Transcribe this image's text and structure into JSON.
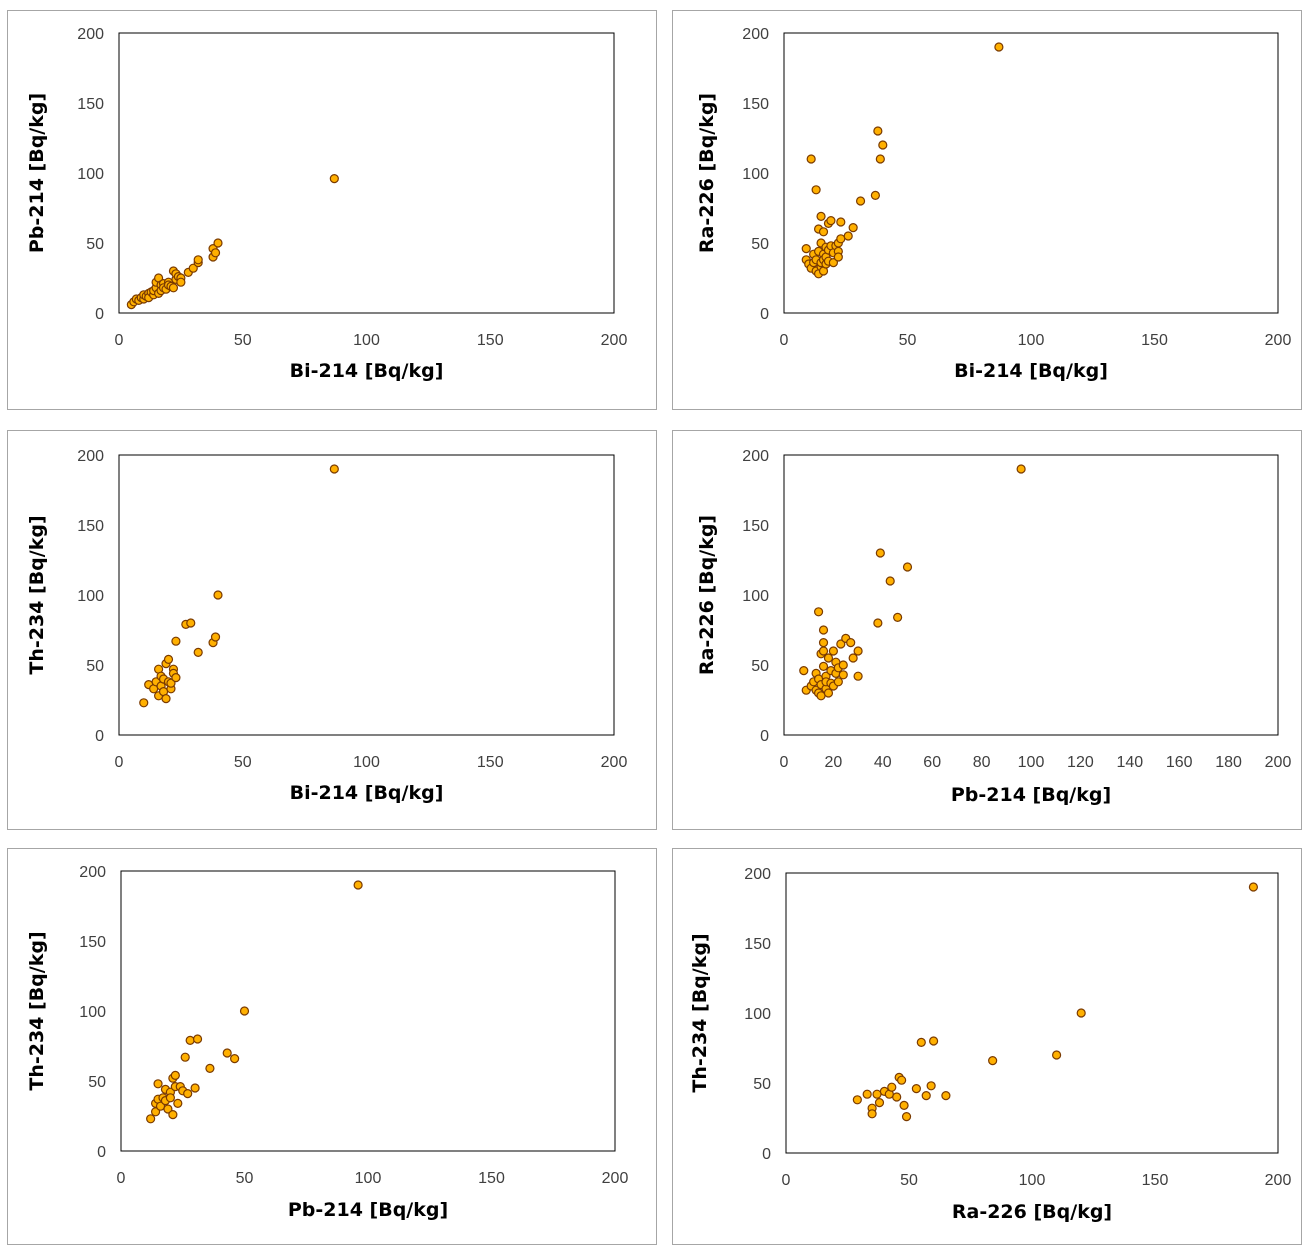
{
  "chart_data": [
    {
      "type": "scatter",
      "xlabel": "Bi-214  [Bq/kg]",
      "ylabel": "Pb-214  [Bq/kg]",
      "xlim": [
        0,
        200
      ],
      "ylim": [
        0,
        200
      ],
      "xticks": [
        "0",
        "50",
        "100",
        "150",
        "200"
      ],
      "yticks": [
        "0",
        "50",
        "100",
        "150",
        "200"
      ],
      "points": [
        [
          5,
          6
        ],
        [
          6,
          8
        ],
        [
          7,
          10
        ],
        [
          8,
          9
        ],
        [
          9,
          11
        ],
        [
          10,
          10
        ],
        [
          10,
          13
        ],
        [
          11,
          12
        ],
        [
          12,
          14
        ],
        [
          12,
          11
        ],
        [
          13,
          15
        ],
        [
          14,
          13
        ],
        [
          14,
          16
        ],
        [
          15,
          18
        ],
        [
          15,
          22
        ],
        [
          16,
          25
        ],
        [
          16,
          14
        ],
        [
          17,
          20
        ],
        [
          17,
          16
        ],
        [
          18,
          21
        ],
        [
          18,
          18
        ],
        [
          19,
          17
        ],
        [
          20,
          22
        ],
        [
          20,
          20
        ],
        [
          21,
          19
        ],
        [
          22,
          18
        ],
        [
          22,
          30
        ],
        [
          23,
          24
        ],
        [
          23,
          28
        ],
        [
          24,
          26
        ],
        [
          25,
          25
        ],
        [
          25,
          22
        ],
        [
          28,
          29
        ],
        [
          30,
          32
        ],
        [
          32,
          36
        ],
        [
          32,
          38
        ],
        [
          38,
          40
        ],
        [
          38,
          46
        ],
        [
          39,
          43
        ],
        [
          40,
          50
        ],
        [
          87,
          96
        ]
      ]
    },
    {
      "type": "scatter",
      "xlabel": "Bi-214  [Bq/kg]",
      "ylabel": "Ra-226  [Bq/kg]",
      "xlim": [
        0,
        200
      ],
      "ylim": [
        0,
        200
      ],
      "xticks": [
        "0",
        "50",
        "100",
        "150",
        "200"
      ],
      "yticks": [
        "0",
        "50",
        "100",
        "150",
        "200"
      ],
      "points": [
        [
          9,
          46
        ],
        [
          9,
          38
        ],
        [
          10,
          35
        ],
        [
          11,
          110
        ],
        [
          11,
          32
        ],
        [
          12,
          36
        ],
        [
          12,
          42
        ],
        [
          13,
          88
        ],
        [
          13,
          30
        ],
        [
          13,
          38
        ],
        [
          14,
          28
        ],
        [
          14,
          60
        ],
        [
          14,
          44
        ],
        [
          15,
          69
        ],
        [
          15,
          50
        ],
        [
          15,
          33
        ],
        [
          15,
          36
        ],
        [
          16,
          58
        ],
        [
          16,
          42
        ],
        [
          16,
          38
        ],
        [
          16,
          30
        ],
        [
          17,
          47
        ],
        [
          17,
          35
        ],
        [
          17,
          40
        ],
        [
          18,
          64
        ],
        [
          18,
          37
        ],
        [
          18,
          45
        ],
        [
          19,
          66
        ],
        [
          19,
          48
        ],
        [
          20,
          36
        ],
        [
          20,
          43
        ],
        [
          21,
          48
        ],
        [
          22,
          50
        ],
        [
          22,
          44
        ],
        [
          22,
          40
        ],
        [
          23,
          65
        ],
        [
          23,
          53
        ],
        [
          26,
          55
        ],
        [
          28,
          61
        ],
        [
          31,
          80
        ],
        [
          37,
          84
        ],
        [
          38,
          130
        ],
        [
          39,
          110
        ],
        [
          40,
          120
        ],
        [
          87,
          190
        ]
      ]
    },
    {
      "type": "scatter",
      "xlabel": "Bi-214  [Bq/kg]",
      "ylabel": "Th-234  [Bq/kg]",
      "xlim": [
        0,
        200
      ],
      "ylim": [
        0,
        200
      ],
      "xticks": [
        "0",
        "50",
        "100",
        "150",
        "200"
      ],
      "yticks": [
        "0",
        "50",
        "100",
        "150",
        "200"
      ],
      "points": [
        [
          10,
          23
        ],
        [
          12,
          36
        ],
        [
          14,
          33
        ],
        [
          15,
          38
        ],
        [
          16,
          28
        ],
        [
          16,
          47
        ],
        [
          17,
          35
        ],
        [
          17,
          42
        ],
        [
          18,
          40
        ],
        [
          18,
          31
        ],
        [
          19,
          26
        ],
        [
          19,
          51
        ],
        [
          20,
          54
        ],
        [
          20,
          38
        ],
        [
          21,
          33
        ],
        [
          21,
          37
        ],
        [
          22,
          47
        ],
        [
          22,
          44
        ],
        [
          23,
          67
        ],
        [
          23,
          41
        ],
        [
          27,
          79
        ],
        [
          29,
          80
        ],
        [
          32,
          59
        ],
        [
          38,
          66
        ],
        [
          39,
          70
        ],
        [
          40,
          100
        ],
        [
          87,
          190
        ]
      ]
    },
    {
      "type": "scatter",
      "xlabel": "Pb-214  [Bq/kg]",
      "ylabel": "Ra-226  [Bq/kg]",
      "xlim": [
        0,
        200
      ],
      "ylim": [
        0,
        200
      ],
      "xticks": [
        "0",
        "20",
        "40",
        "60",
        "80",
        "100",
        "120",
        "140",
        "160",
        "180",
        "200"
      ],
      "yticks": [
        "0",
        "50",
        "100",
        "150",
        "200"
      ],
      "points": [
        [
          8,
          46
        ],
        [
          9,
          32
        ],
        [
          11,
          35
        ],
        [
          12,
          38
        ],
        [
          13,
          32
        ],
        [
          13,
          44
        ],
        [
          14,
          88
        ],
        [
          14,
          30
        ],
        [
          14,
          40
        ],
        [
          15,
          28
        ],
        [
          15,
          58
        ],
        [
          15,
          36
        ],
        [
          16,
          60
        ],
        [
          16,
          75
        ],
        [
          16,
          49
        ],
        [
          16,
          66
        ],
        [
          17,
          42
        ],
        [
          17,
          33
        ],
        [
          17,
          38
        ],
        [
          18,
          30
        ],
        [
          18,
          55
        ],
        [
          19,
          46
        ],
        [
          19,
          37
        ],
        [
          20,
          60
        ],
        [
          20,
          35
        ],
        [
          21,
          52
        ],
        [
          21,
          44
        ],
        [
          22,
          48
        ],
        [
          22,
          38
        ],
        [
          23,
          65
        ],
        [
          24,
          50
        ],
        [
          24,
          43
        ],
        [
          25,
          69
        ],
        [
          27,
          66
        ],
        [
          28,
          55
        ],
        [
          30,
          42
        ],
        [
          30,
          60
        ],
        [
          38,
          80
        ],
        [
          39,
          130
        ],
        [
          43,
          110
        ],
        [
          46,
          84
        ],
        [
          50,
          120
        ],
        [
          96,
          190
        ]
      ]
    },
    {
      "type": "scatter",
      "xlabel": "Pb-214  [Bq/kg]",
      "ylabel": "Th-234  [Bq/kg]",
      "xlim": [
        0,
        200
      ],
      "ylim": [
        0,
        200
      ],
      "xticks": [
        "0",
        "50",
        "100",
        "150",
        "200"
      ],
      "yticks": [
        "0",
        "50",
        "100",
        "150",
        "200"
      ],
      "points": [
        [
          12,
          23
        ],
        [
          14,
          28
        ],
        [
          14,
          34
        ],
        [
          15,
          37
        ],
        [
          15,
          48
        ],
        [
          16,
          32
        ],
        [
          17,
          38
        ],
        [
          18,
          44
        ],
        [
          18,
          36
        ],
        [
          19,
          30
        ],
        [
          20,
          42
        ],
        [
          20,
          38
        ],
        [
          21,
          26
        ],
        [
          21,
          52
        ],
        [
          22,
          54
        ],
        [
          22,
          46
        ],
        [
          23,
          34
        ],
        [
          24,
          46
        ],
        [
          25,
          43
        ],
        [
          26,
          67
        ],
        [
          27,
          41
        ],
        [
          28,
          79
        ],
        [
          30,
          45
        ],
        [
          31,
          80
        ],
        [
          36,
          59
        ],
        [
          43,
          70
        ],
        [
          46,
          66
        ],
        [
          50,
          100
        ],
        [
          96,
          190
        ]
      ]
    },
    {
      "type": "scatter",
      "xlabel": "Ra-226  [Bq/kg]",
      "ylabel": "Th-234  [Bq/kg]",
      "xlim": [
        0,
        200
      ],
      "ylim": [
        0,
        200
      ],
      "xticks": [
        "0",
        "50",
        "100",
        "150",
        "200"
      ],
      "yticks": [
        "0",
        "50",
        "100",
        "150",
        "200"
      ],
      "points": [
        [
          29,
          38
        ],
        [
          33,
          42
        ],
        [
          35,
          32
        ],
        [
          35,
          28
        ],
        [
          37,
          42
        ],
        [
          38,
          36
        ],
        [
          40,
          44
        ],
        [
          42,
          42
        ],
        [
          43,
          47
        ],
        [
          45,
          40
        ],
        [
          46,
          54
        ],
        [
          47,
          52
        ],
        [
          48,
          34
        ],
        [
          49,
          26
        ],
        [
          53,
          46
        ],
        [
          55,
          79
        ],
        [
          57,
          41
        ],
        [
          59,
          48
        ],
        [
          60,
          80
        ],
        [
          65,
          41
        ],
        [
          84,
          66
        ],
        [
          110,
          70
        ],
        [
          120,
          100
        ],
        [
          190,
          190
        ]
      ]
    }
  ]
}
